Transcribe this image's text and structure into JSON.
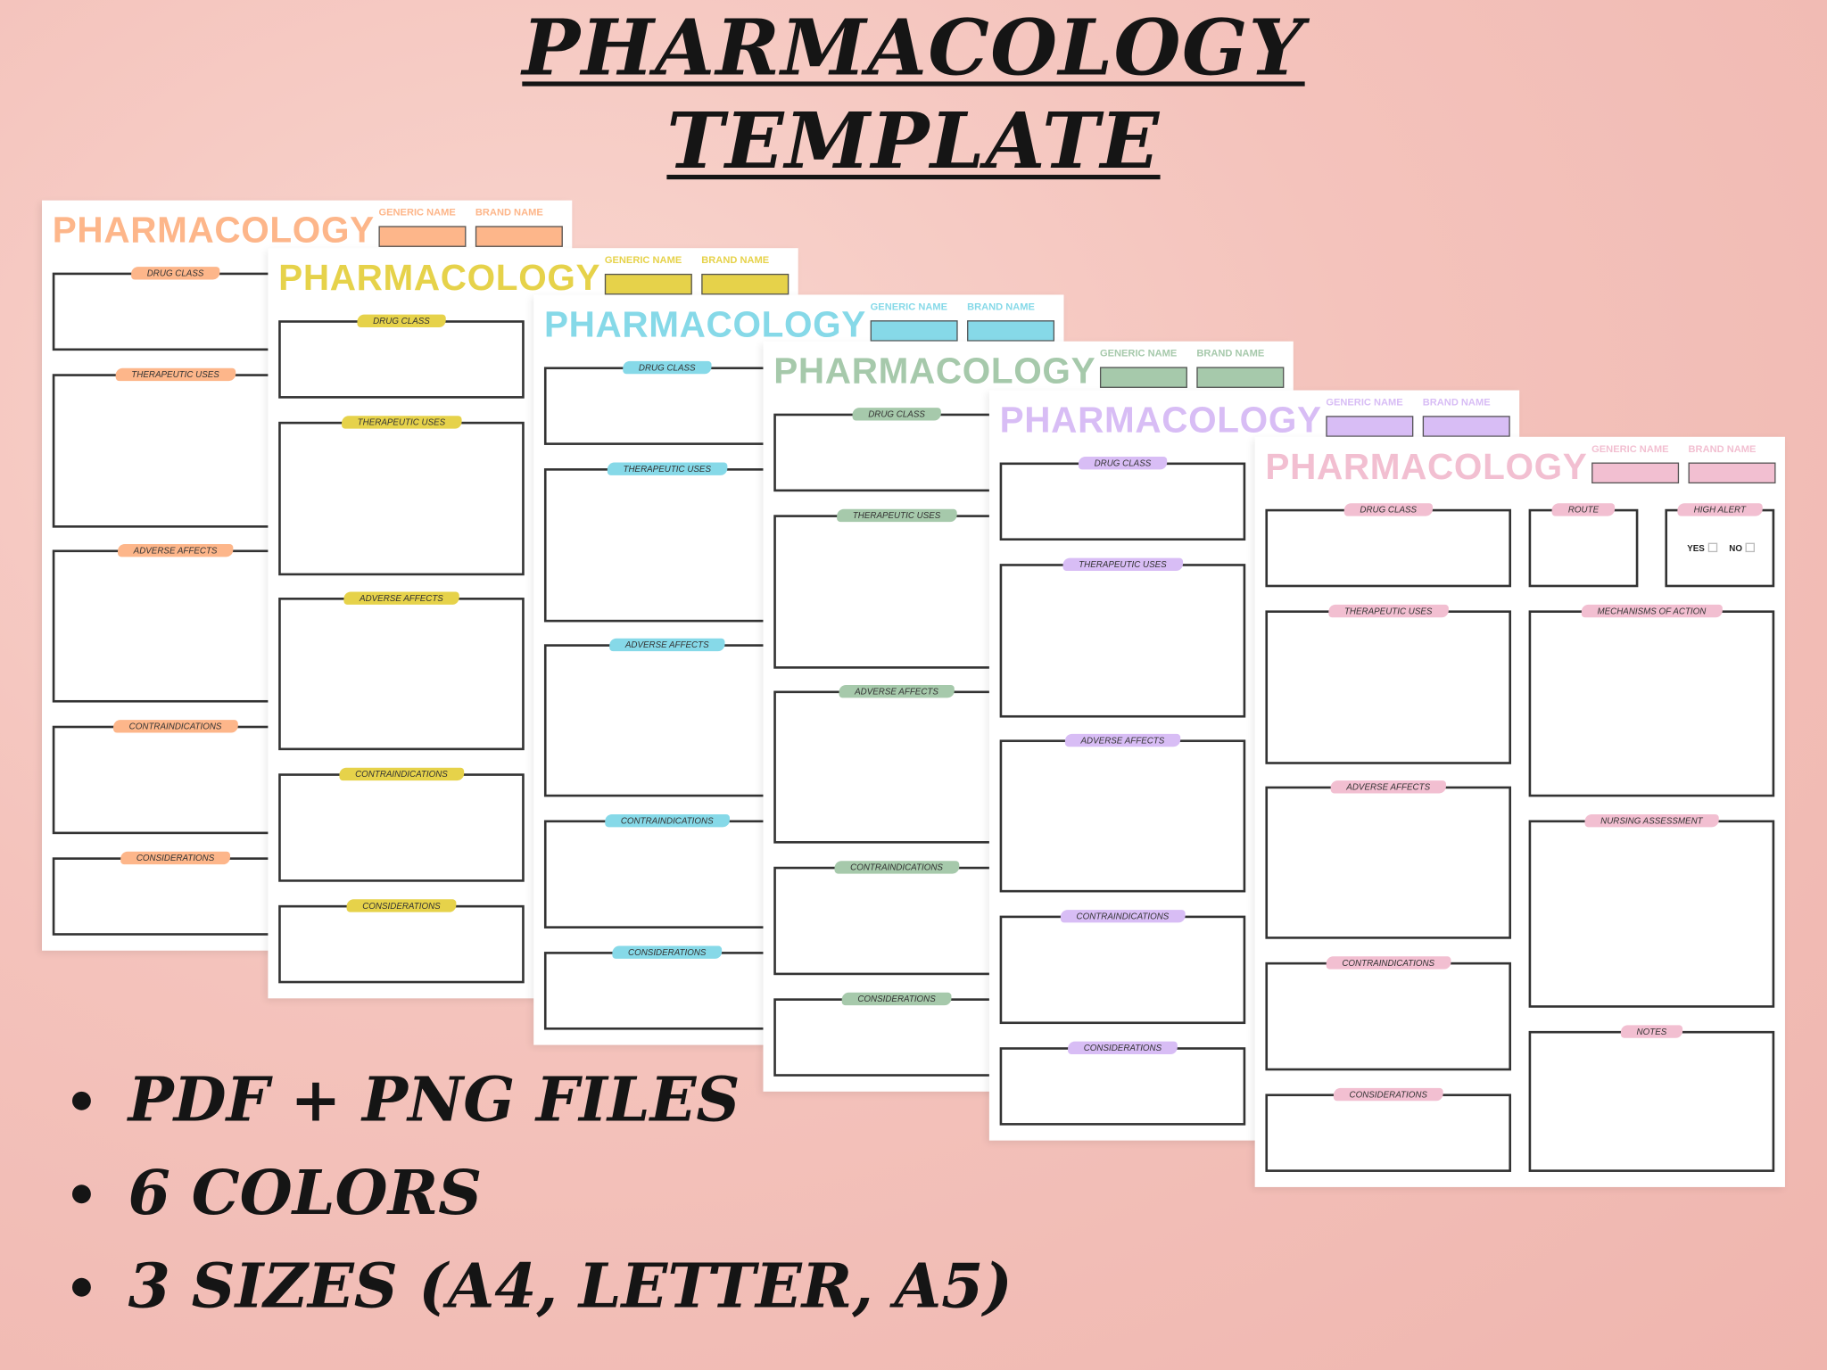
{
  "headline": {
    "line1": "PHARMACOLOGY",
    "line2": "TEMPLATE"
  },
  "bullets": [
    "PDF + PNG FILES",
    "6 COLORS",
    "3 SIZES  (A4, LETTER, A5)"
  ],
  "template": {
    "title": "PHARMACOLOGY",
    "generic_name_label": "GENERIC NAME",
    "brand_name_label": "BRAND NAME",
    "sections": {
      "drug_class": "DRUG CLASS",
      "route": "ROUTE",
      "high_alert": "HIGH ALERT",
      "therapeutic_uses": "THERAPEUTIC USES",
      "mechanisms_of_action": "MECHANISMS OF ACTION",
      "adverse_affects": "ADVERSE AFFECTS",
      "nursing_assessment": "NURSING ASSESSMENT",
      "contraindications": "CONTRAINDICATIONS",
      "notes": "NOTES",
      "considerations": "CONSIDERATIONS"
    },
    "high_alert_yes": "YES",
    "high_alert_no": "NO"
  },
  "pages": [
    {
      "color_name": "orange",
      "color": "#fdb68a"
    },
    {
      "color_name": "yellow",
      "color": "#e6d24a"
    },
    {
      "color_name": "blue",
      "color": "#86d9e8"
    },
    {
      "color_name": "green",
      "color": "#a6c9ab"
    },
    {
      "color_name": "purple",
      "color": "#d8bdf5"
    },
    {
      "color_name": "pink",
      "color": "#f2bfd1"
    }
  ]
}
